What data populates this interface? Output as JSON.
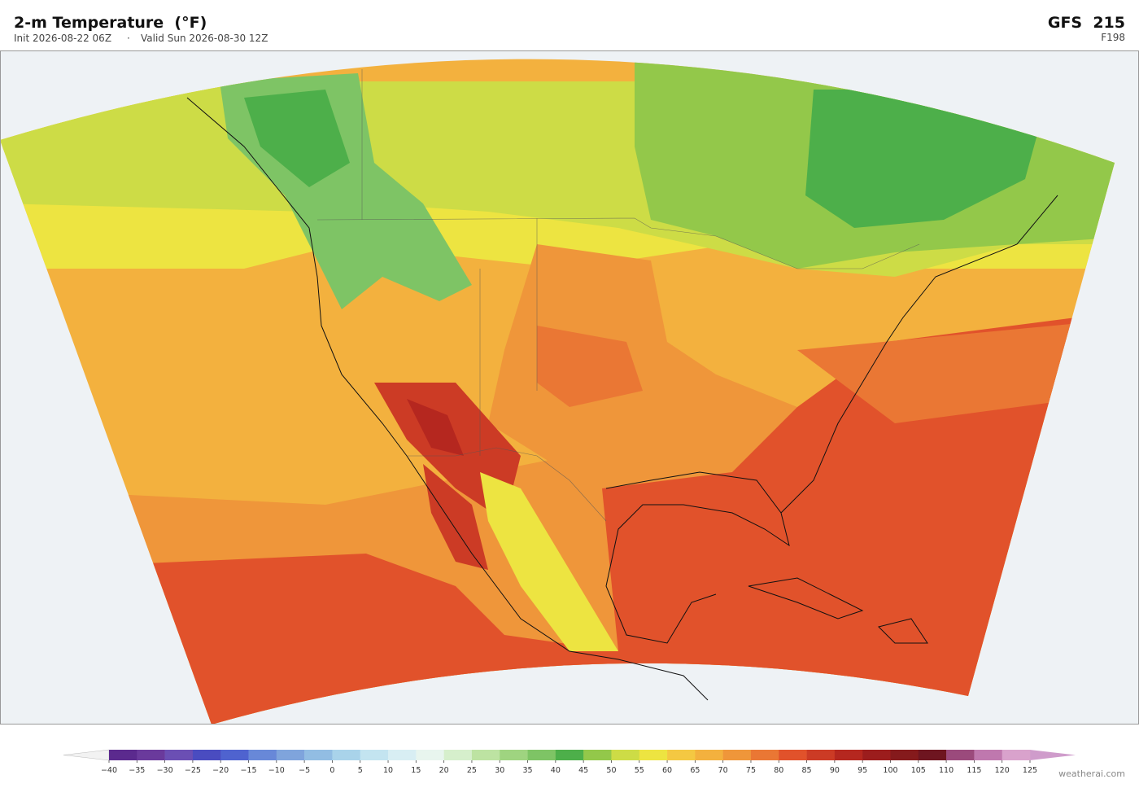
{
  "header": {
    "title": "2-m Temperature  (°F)",
    "init": "Init 2026-08-22 06Z",
    "separator": "·",
    "valid": "Valid Sun 2026-08-30 12Z",
    "model": "GFS  215",
    "forecast_hour": "F198"
  },
  "colorbar": {
    "ticks": [
      {
        "value": -40,
        "label": "−40"
      },
      {
        "value": -35,
        "label": "−35"
      },
      {
        "value": -30,
        "label": "−30"
      },
      {
        "value": -25,
        "label": "−25"
      },
      {
        "value": -20,
        "label": "−20"
      },
      {
        "value": -15,
        "label": "−15"
      },
      {
        "value": -10,
        "label": "−10"
      },
      {
        "value": -5,
        "label": "−5"
      },
      0,
      5,
      10,
      15,
      20,
      25,
      30,
      35,
      40,
      45,
      50,
      55,
      60,
      65,
      70,
      75,
      80,
      85,
      90,
      95,
      100,
      105,
      110,
      115,
      120,
      125
    ],
    "colors": [
      "#5b2a8e",
      "#6a3a9c",
      "#6b4fb4",
      "#4a4cc0",
      "#4f63cf",
      "#6888d8",
      "#7fa4dc",
      "#92bde3",
      "#a9d3ea",
      "#c3e4f0",
      "#d8eef3",
      "#e8f5ee",
      "#d6efcc",
      "#bde3a2",
      "#9fd480",
      "#7ec465",
      "#4daf4a",
      "#93c84a",
      "#cddc46",
      "#ede441",
      "#f4c842",
      "#f3b13e",
      "#ef963a",
      "#ea7734",
      "#e1522b",
      "#cc3b25",
      "#b5271f",
      "#9c1d1d",
      "#851a1c",
      "#6e1520",
      "#9b4a7c",
      "#bf78ae",
      "#d9a2cc"
    ],
    "under_color": "#f2f2f2",
    "over_color": "#cf9ccb"
  },
  "footer": {
    "credit": "weatherai.com"
  }
}
